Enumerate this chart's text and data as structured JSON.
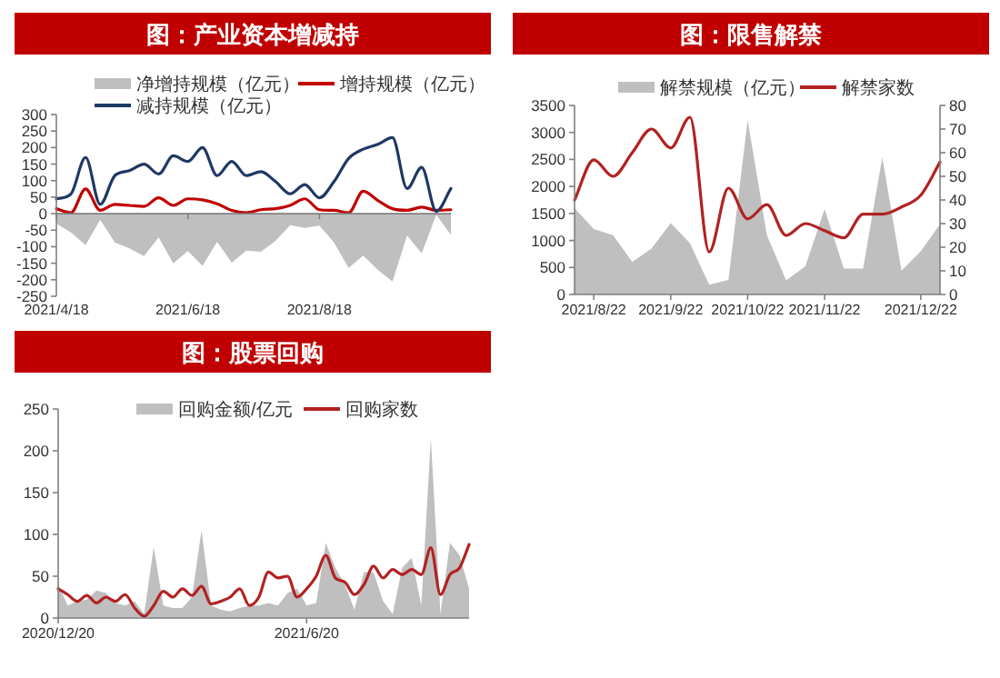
{
  "chart_data": [
    {
      "type": "line",
      "title": "图：产业资本增减持",
      "legend": "top",
      "ylim": [
        -250,
        300
      ],
      "yticks": [
        -250,
        -200,
        -150,
        -100,
        -50,
        0,
        50,
        100,
        150,
        200,
        250,
        300
      ],
      "categories": [
        "2021/4/18",
        null,
        null,
        null,
        null,
        null,
        null,
        null,
        null,
        "2021/6/18",
        null,
        null,
        null,
        null,
        null,
        null,
        null,
        null,
        "2021/8/18",
        null,
        null,
        null,
        null,
        null,
        null,
        null,
        null,
        null
      ],
      "series": [
        {
          "name": "净增持规模（亿元）",
          "type": "area",
          "color": "#bfbfbf",
          "values": [
            -30,
            -57,
            -95,
            -18,
            -87,
            -105,
            -128,
            -72,
            -150,
            -113,
            -158,
            -85,
            -148,
            -112,
            -115,
            -82,
            -35,
            -43,
            -36,
            -87,
            -164,
            -127,
            -170,
            -205,
            -66,
            -120,
            -3,
            -64
          ]
        },
        {
          "name": "增持规模（亿元）",
          "type": "line",
          "color": "#c00000",
          "values": [
            15,
            3,
            75,
            10,
            28,
            25,
            22,
            48,
            25,
            45,
            42,
            30,
            10,
            3,
            12,
            15,
            25,
            45,
            12,
            10,
            3,
            68,
            40,
            15,
            10,
            20,
            10,
            12
          ]
        },
        {
          "name": "减持规模（亿元）",
          "type": "line",
          "color": "#1f3864",
          "values": [
            45,
            60,
            170,
            28,
            115,
            130,
            150,
            120,
            175,
            158,
            200,
            115,
            158,
            115,
            127,
            97,
            60,
            88,
            48,
            97,
            167,
            195,
            210,
            230,
            76,
            140,
            7,
            76
          ]
        }
      ]
    },
    {
      "type": "line",
      "title": "图：限售解禁",
      "legend": "top",
      "ylim": [
        0,
        3500
      ],
      "yticks": [
        0,
        500,
        1000,
        1500,
        2000,
        2500,
        3000,
        3500
      ],
      "y2lim": [
        0,
        80
      ],
      "y2ticks": [
        0,
        10,
        20,
        30,
        40,
        50,
        60,
        70,
        80
      ],
      "categories": [
        null,
        "2021/8/22",
        null,
        null,
        null,
        "2021/9/22",
        null,
        null,
        null,
        "2021/10/22",
        null,
        null,
        null,
        "2021/11/22",
        null,
        null,
        null,
        null,
        "2021/12/22",
        null
      ],
      "series": [
        {
          "name": "解禁规模（亿元）",
          "type": "area",
          "color": "#bfbfbf",
          "values": [
            1600,
            1210,
            1100,
            600,
            850,
            1320,
            950,
            180,
            270,
            3230,
            1100,
            260,
            520,
            1580,
            480,
            480,
            2540,
            440,
            800,
            1300
          ]
        },
        {
          "name": "解禁家数",
          "type": "line",
          "axis": "y2",
          "color": "#b22222",
          "values": [
            40,
            57,
            50,
            60,
            70,
            62,
            75,
            18,
            45,
            32,
            38,
            25,
            30,
            27,
            24,
            34,
            34,
            37,
            42,
            56
          ]
        }
      ]
    },
    {
      "type": "line",
      "title": "图：股票回购",
      "legend": "top",
      "ylim": [
        0,
        250
      ],
      "yticks": [
        0,
        50,
        100,
        150,
        200,
        250
      ],
      "categories": [
        "2020/12/20",
        null,
        null,
        null,
        null,
        null,
        null,
        null,
        null,
        null,
        null,
        null,
        null,
        null,
        null,
        null,
        null,
        null,
        null,
        null,
        null,
        null,
        null,
        null,
        null,
        null,
        "2021/6/20",
        null,
        null,
        null,
        null,
        null,
        null,
        null,
        null,
        null,
        null,
        null,
        null,
        null,
        null,
        null,
        null,
        null
      ],
      "series": [
        {
          "name": "回购金额/亿元",
          "type": "area",
          "color": "#bfbfbf",
          "values": [
            40,
            15,
            20,
            22,
            33,
            30,
            18,
            15,
            20,
            5,
            85,
            15,
            12,
            12,
            25,
            105,
            15,
            10,
            8,
            12,
            15,
            15,
            18,
            15,
            30,
            35,
            15,
            18,
            90,
            60,
            40,
            10,
            55,
            55,
            20,
            5,
            60,
            72,
            15,
            215,
            5,
            90,
            75,
            35
          ]
        },
        {
          "name": "回购家数",
          "type": "line",
          "color": "#b22222",
          "values": [
            35,
            28,
            20,
            27,
            18,
            25,
            20,
            28,
            12,
            2,
            15,
            32,
            25,
            35,
            27,
            38,
            17,
            20,
            25,
            35,
            15,
            25,
            55,
            48,
            50,
            25,
            35,
            50,
            75,
            48,
            43,
            28,
            40,
            62,
            48,
            58,
            52,
            58,
            52,
            84,
            28,
            52,
            60,
            88
          ]
        }
      ]
    }
  ]
}
